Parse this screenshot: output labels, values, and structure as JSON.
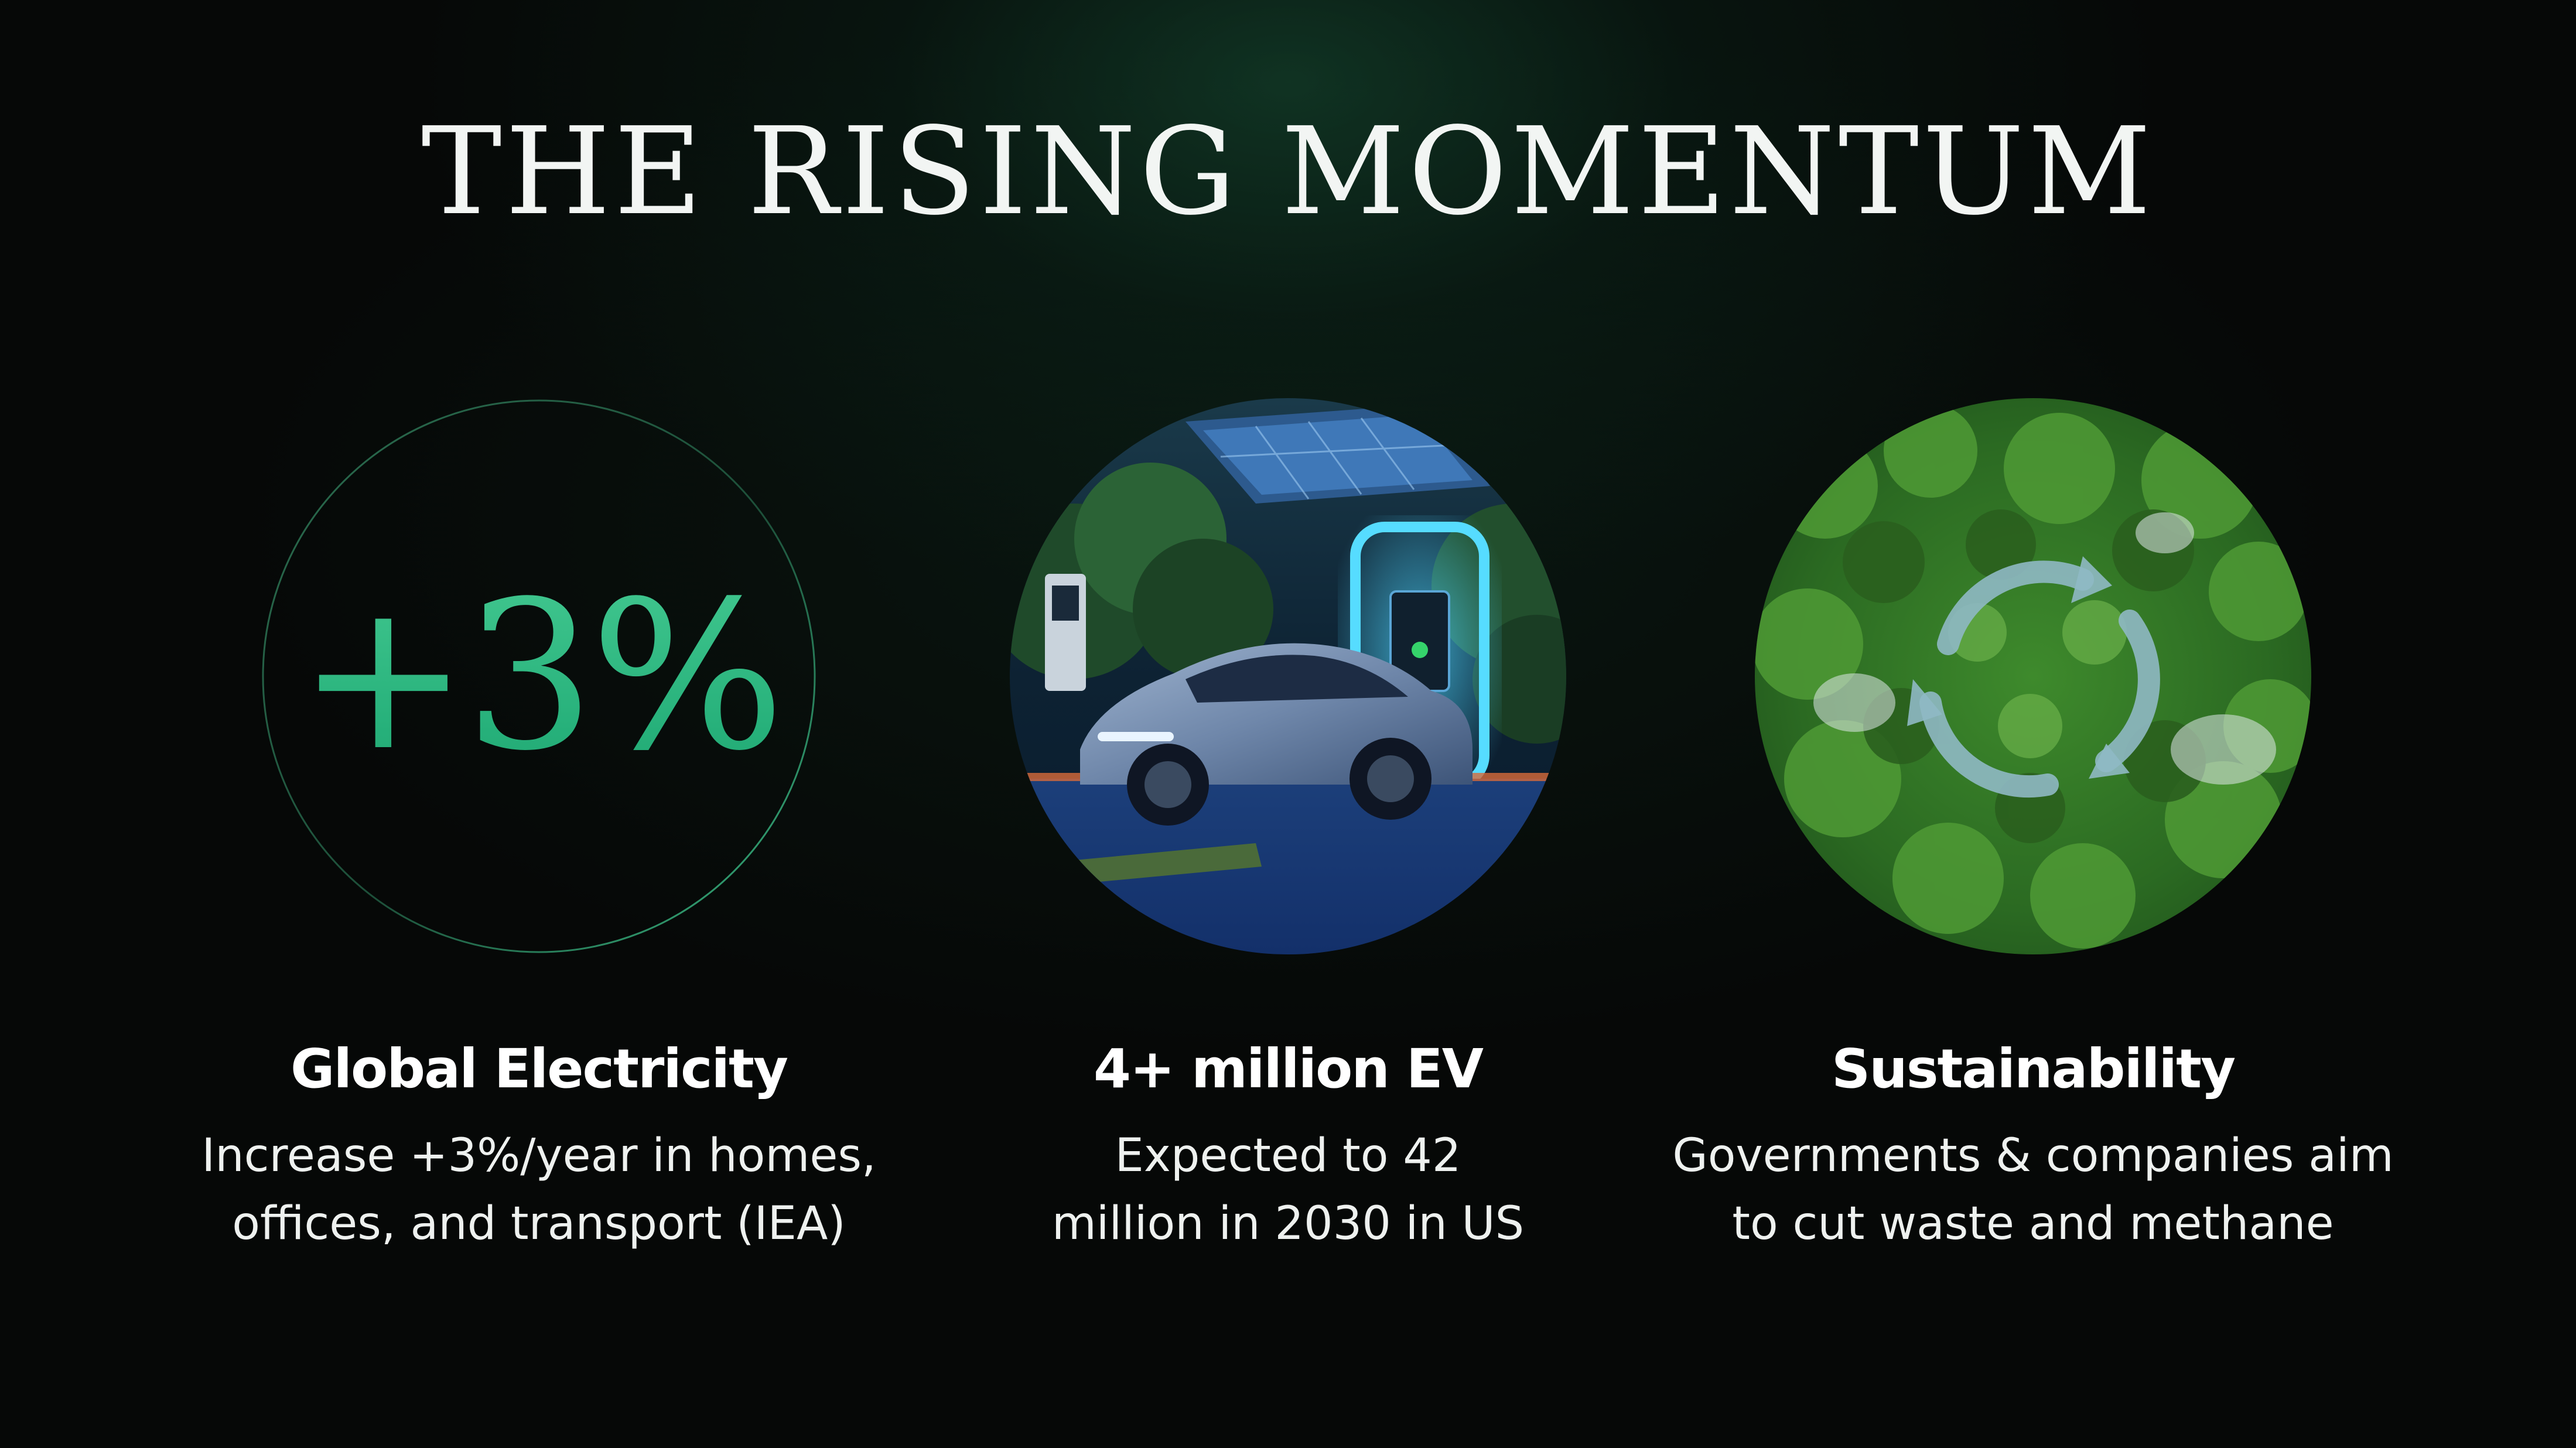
{
  "slide": {
    "title": "THE RISING MOMENTUM",
    "accent_color": "#2fbf86",
    "background_color": "#060807"
  },
  "cards": [
    {
      "stat": "+3%",
      "title": "Global Electricity",
      "description_lines": [
        "Increase +3%/year in homes,",
        "offices, and transport (IEA)"
      ]
    },
    {
      "image": "ev-charging-station-photo",
      "title": "4+ million EV",
      "description_lines": [
        "Expected to 42",
        "million in 2030 in US"
      ]
    },
    {
      "image": "forest-aerial-recycle-photo",
      "title": "Sustainability",
      "description_lines": [
        "Governments & companies aim",
        "to cut waste and methane"
      ]
    }
  ]
}
